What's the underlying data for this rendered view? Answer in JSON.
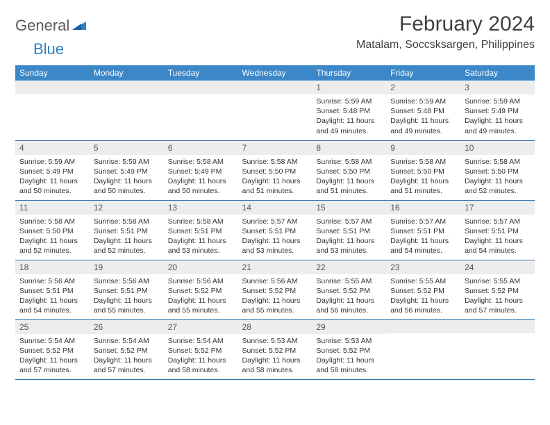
{
  "brand": {
    "part1": "General",
    "part2": "Blue"
  },
  "title": "February 2024",
  "location": "Matalam, Soccsksargen, Philippines",
  "colors": {
    "header_bg": "#3b87c8",
    "header_text": "#ffffff",
    "daynum_bg": "#ededed",
    "border": "#2f6fa8",
    "brand_gray": "#5a5a5a",
    "brand_blue": "#2f7fc1"
  },
  "day_names": [
    "Sunday",
    "Monday",
    "Tuesday",
    "Wednesday",
    "Thursday",
    "Friday",
    "Saturday"
  ],
  "weeks": [
    [
      {
        "num": "",
        "sunrise": "",
        "sunset": "",
        "daylight": ""
      },
      {
        "num": "",
        "sunrise": "",
        "sunset": "",
        "daylight": ""
      },
      {
        "num": "",
        "sunrise": "",
        "sunset": "",
        "daylight": ""
      },
      {
        "num": "",
        "sunrise": "",
        "sunset": "",
        "daylight": ""
      },
      {
        "num": "1",
        "sunrise": "Sunrise: 5:59 AM",
        "sunset": "Sunset: 5:48 PM",
        "daylight": "Daylight: 11 hours and 49 minutes."
      },
      {
        "num": "2",
        "sunrise": "Sunrise: 5:59 AM",
        "sunset": "Sunset: 5:48 PM",
        "daylight": "Daylight: 11 hours and 49 minutes."
      },
      {
        "num": "3",
        "sunrise": "Sunrise: 5:59 AM",
        "sunset": "Sunset: 5:49 PM",
        "daylight": "Daylight: 11 hours and 49 minutes."
      }
    ],
    [
      {
        "num": "4",
        "sunrise": "Sunrise: 5:59 AM",
        "sunset": "Sunset: 5:49 PM",
        "daylight": "Daylight: 11 hours and 50 minutes."
      },
      {
        "num": "5",
        "sunrise": "Sunrise: 5:59 AM",
        "sunset": "Sunset: 5:49 PM",
        "daylight": "Daylight: 11 hours and 50 minutes."
      },
      {
        "num": "6",
        "sunrise": "Sunrise: 5:58 AM",
        "sunset": "Sunset: 5:49 PM",
        "daylight": "Daylight: 11 hours and 50 minutes."
      },
      {
        "num": "7",
        "sunrise": "Sunrise: 5:58 AM",
        "sunset": "Sunset: 5:50 PM",
        "daylight": "Daylight: 11 hours and 51 minutes."
      },
      {
        "num": "8",
        "sunrise": "Sunrise: 5:58 AM",
        "sunset": "Sunset: 5:50 PM",
        "daylight": "Daylight: 11 hours and 51 minutes."
      },
      {
        "num": "9",
        "sunrise": "Sunrise: 5:58 AM",
        "sunset": "Sunset: 5:50 PM",
        "daylight": "Daylight: 11 hours and 51 minutes."
      },
      {
        "num": "10",
        "sunrise": "Sunrise: 5:58 AM",
        "sunset": "Sunset: 5:50 PM",
        "daylight": "Daylight: 11 hours and 52 minutes."
      }
    ],
    [
      {
        "num": "11",
        "sunrise": "Sunrise: 5:58 AM",
        "sunset": "Sunset: 5:50 PM",
        "daylight": "Daylight: 11 hours and 52 minutes."
      },
      {
        "num": "12",
        "sunrise": "Sunrise: 5:58 AM",
        "sunset": "Sunset: 5:51 PM",
        "daylight": "Daylight: 11 hours and 52 minutes."
      },
      {
        "num": "13",
        "sunrise": "Sunrise: 5:58 AM",
        "sunset": "Sunset: 5:51 PM",
        "daylight": "Daylight: 11 hours and 53 minutes."
      },
      {
        "num": "14",
        "sunrise": "Sunrise: 5:57 AM",
        "sunset": "Sunset: 5:51 PM",
        "daylight": "Daylight: 11 hours and 53 minutes."
      },
      {
        "num": "15",
        "sunrise": "Sunrise: 5:57 AM",
        "sunset": "Sunset: 5:51 PM",
        "daylight": "Daylight: 11 hours and 53 minutes."
      },
      {
        "num": "16",
        "sunrise": "Sunrise: 5:57 AM",
        "sunset": "Sunset: 5:51 PM",
        "daylight": "Daylight: 11 hours and 54 minutes."
      },
      {
        "num": "17",
        "sunrise": "Sunrise: 5:57 AM",
        "sunset": "Sunset: 5:51 PM",
        "daylight": "Daylight: 11 hours and 54 minutes."
      }
    ],
    [
      {
        "num": "18",
        "sunrise": "Sunrise: 5:56 AM",
        "sunset": "Sunset: 5:51 PM",
        "daylight": "Daylight: 11 hours and 54 minutes."
      },
      {
        "num": "19",
        "sunrise": "Sunrise: 5:56 AM",
        "sunset": "Sunset: 5:51 PM",
        "daylight": "Daylight: 11 hours and 55 minutes."
      },
      {
        "num": "20",
        "sunrise": "Sunrise: 5:56 AM",
        "sunset": "Sunset: 5:52 PM",
        "daylight": "Daylight: 11 hours and 55 minutes."
      },
      {
        "num": "21",
        "sunrise": "Sunrise: 5:56 AM",
        "sunset": "Sunset: 5:52 PM",
        "daylight": "Daylight: 11 hours and 55 minutes."
      },
      {
        "num": "22",
        "sunrise": "Sunrise: 5:55 AM",
        "sunset": "Sunset: 5:52 PM",
        "daylight": "Daylight: 11 hours and 56 minutes."
      },
      {
        "num": "23",
        "sunrise": "Sunrise: 5:55 AM",
        "sunset": "Sunset: 5:52 PM",
        "daylight": "Daylight: 11 hours and 56 minutes."
      },
      {
        "num": "24",
        "sunrise": "Sunrise: 5:55 AM",
        "sunset": "Sunset: 5:52 PM",
        "daylight": "Daylight: 11 hours and 57 minutes."
      }
    ],
    [
      {
        "num": "25",
        "sunrise": "Sunrise: 5:54 AM",
        "sunset": "Sunset: 5:52 PM",
        "daylight": "Daylight: 11 hours and 57 minutes."
      },
      {
        "num": "26",
        "sunrise": "Sunrise: 5:54 AM",
        "sunset": "Sunset: 5:52 PM",
        "daylight": "Daylight: 11 hours and 57 minutes."
      },
      {
        "num": "27",
        "sunrise": "Sunrise: 5:54 AM",
        "sunset": "Sunset: 5:52 PM",
        "daylight": "Daylight: 11 hours and 58 minutes."
      },
      {
        "num": "28",
        "sunrise": "Sunrise: 5:53 AM",
        "sunset": "Sunset: 5:52 PM",
        "daylight": "Daylight: 11 hours and 58 minutes."
      },
      {
        "num": "29",
        "sunrise": "Sunrise: 5:53 AM",
        "sunset": "Sunset: 5:52 PM",
        "daylight": "Daylight: 11 hours and 58 minutes."
      },
      {
        "num": "",
        "sunrise": "",
        "sunset": "",
        "daylight": ""
      },
      {
        "num": "",
        "sunrise": "",
        "sunset": "",
        "daylight": ""
      }
    ]
  ]
}
